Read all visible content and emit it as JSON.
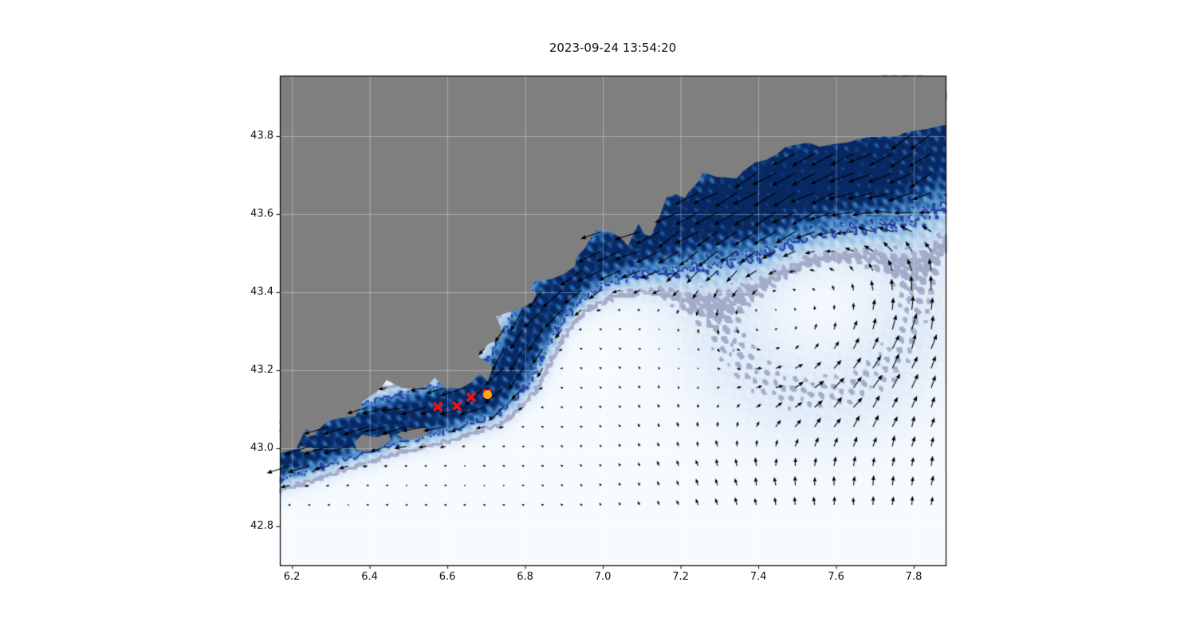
{
  "title": "2023-09-24 13:54:20",
  "chart_data": {
    "type": "quiver-map",
    "title": "2023-09-24 13:54:20",
    "extent": {
      "lon": [
        6.169,
        7.882
      ],
      "lat": [
        42.7,
        43.955
      ]
    },
    "x_axis": {
      "ticks": [
        6.2,
        6.4,
        6.6,
        6.8,
        7.0,
        7.2,
        7.4,
        7.6,
        7.8
      ],
      "tick_labels": [
        "6.2",
        "6.4",
        "6.6",
        "6.8",
        "7.0",
        "7.2",
        "7.4",
        "7.6",
        "7.8"
      ]
    },
    "y_axis": {
      "ticks": [
        43.8,
        43.6,
        43.4,
        43.2,
        43.0,
        42.8
      ],
      "tick_labels": [
        "43.8",
        "43.6",
        "43.4",
        "43.2",
        "43.0",
        "42.8"
      ]
    },
    "grid": {
      "show": true,
      "color": "rgba(255,255,255,0.35)"
    },
    "colors": {
      "figure_bg": "#ffffff",
      "land": "#7f7f7f",
      "frame": "#000000",
      "arrow": "#000000",
      "sea_colormap": [
        [
          247,
          251,
          255
        ],
        [
          228,
          238,
          249
        ],
        [
          204,
          222,
          242
        ],
        [
          158,
          198,
          230
        ],
        [
          100,
          160,
          208
        ],
        [
          49,
          110,
          177
        ],
        [
          15,
          59,
          126
        ],
        [
          8,
          40,
          97
        ]
      ]
    },
    "contours": [
      {
        "name": "inner-isoline",
        "threshold": 0.33,
        "eps": 0.016,
        "color": "#2a46a8",
        "size": 2.5
      },
      {
        "name": "outer-isoline",
        "threshold": 0.14,
        "eps": 0.02,
        "color": "#a3abc9",
        "size": 3.2
      }
    ],
    "markers": {
      "red_x": {
        "color": "#f31111",
        "size": 14,
        "stroke": 3.4,
        "points": [
          [
            6.576,
            43.106
          ],
          [
            6.624,
            43.108
          ],
          [
            6.662,
            43.131
          ],
          [
            6.703,
            43.141
          ]
        ]
      },
      "orange_circle": {
        "color": "#ffa51e",
        "radius": 5.5,
        "point": [
          6.703,
          43.137
        ]
      }
    },
    "quiver": {
      "lon_start": 6.195,
      "lat_start": 42.855,
      "lat_end": 43.905,
      "step": 0.05,
      "scale": 58,
      "max_len": 33,
      "speed_max": 0.6
    },
    "flow": {
      "jet_peak": 0.58,
      "jet_offset": 0.02,
      "jet_width_west": 0.055,
      "jet_width_east": 0.15,
      "jet_width_ramp": {
        "lon0": 6.95,
        "span": 0.45
      },
      "jet_turn": {
        "lon0": 7.15,
        "span": 0.4,
        "angle": 0.45
      },
      "jet_path": [
        [
          6.05,
          42.95
        ],
        [
          6.2,
          42.99
        ],
        [
          6.32,
          43.03
        ],
        [
          6.45,
          43.07
        ],
        [
          6.58,
          43.1
        ],
        [
          6.7,
          43.14
        ],
        [
          6.76,
          43.2
        ],
        [
          6.8,
          43.28
        ],
        [
          6.84,
          43.35
        ],
        [
          6.9,
          43.42
        ],
        [
          6.97,
          43.48
        ],
        [
          7.05,
          43.52
        ],
        [
          7.13,
          43.55
        ],
        [
          7.2,
          43.59
        ],
        [
          7.28,
          43.62
        ],
        [
          7.38,
          43.65
        ],
        [
          7.5,
          43.69
        ],
        [
          7.62,
          43.72
        ],
        [
          7.75,
          43.74
        ],
        [
          7.95,
          43.79
        ]
      ],
      "gyre": {
        "center": [
          7.55,
          43.4
        ],
        "ring_radius": 0.26,
        "ring_width": 0.15,
        "peak": 0.22,
        "color_weight": 0.5
      },
      "inflow": {
        "peak": 0.2,
        "lon_ramp": 7.15,
        "lon_span": 0.12,
        "lat_center": 42.95,
        "lat_width": 0.5,
        "east_tilt": {
          "lon0": 7.45,
          "span": 0.4,
          "max": 1.0,
          "min": -0.3,
          "factor": 0.35
        }
      },
      "drift_u": -0.035,
      "noise_amp_color": 0.16,
      "noise_amp_speed": 0.1,
      "noise_amp_angle": 0.18
    },
    "coastline": [
      [
        6.169,
        42.986
      ],
      [
        6.212,
        43.0
      ],
      [
        6.235,
        43.049
      ],
      [
        6.261,
        43.041
      ],
      [
        6.29,
        43.069
      ],
      [
        6.329,
        43.079
      ],
      [
        6.364,
        43.082
      ],
      [
        6.382,
        43.12
      ],
      [
        6.407,
        43.137
      ],
      [
        6.427,
        43.153
      ],
      [
        6.444,
        43.175
      ],
      [
        6.481,
        43.155
      ],
      [
        6.518,
        43.151
      ],
      [
        6.551,
        43.161
      ],
      [
        6.567,
        43.181
      ],
      [
        6.592,
        43.157
      ],
      [
        6.633,
        43.153
      ],
      [
        6.661,
        43.169
      ],
      [
        6.682,
        43.192
      ],
      [
        6.704,
        43.171
      ],
      [
        6.717,
        43.21
      ],
      [
        6.68,
        43.235
      ],
      [
        6.704,
        43.267
      ],
      [
        6.741,
        43.282
      ],
      [
        6.737,
        43.312
      ],
      [
        6.725,
        43.337
      ],
      [
        6.758,
        43.349
      ],
      [
        6.793,
        43.361
      ],
      [
        6.819,
        43.375
      ],
      [
        6.83,
        43.396
      ],
      [
        6.813,
        43.41
      ],
      [
        6.825,
        43.429
      ],
      [
        6.866,
        43.433
      ],
      [
        6.901,
        43.447
      ],
      [
        6.928,
        43.467
      ],
      [
        6.934,
        43.492
      ],
      [
        6.955,
        43.514
      ],
      [
        6.973,
        43.547
      ],
      [
        6.983,
        43.559
      ],
      [
        7.016,
        43.555
      ],
      [
        7.045,
        43.541
      ],
      [
        7.065,
        43.518
      ],
      [
        7.078,
        43.549
      ],
      [
        7.092,
        43.575
      ],
      [
        7.106,
        43.549
      ],
      [
        7.123,
        43.543
      ],
      [
        7.143,
        43.586
      ],
      [
        7.164,
        43.643
      ],
      [
        7.188,
        43.651
      ],
      [
        7.211,
        43.641
      ],
      [
        7.221,
        43.657
      ],
      [
        7.25,
        43.688
      ],
      [
        7.256,
        43.708
      ],
      [
        7.291,
        43.696
      ],
      [
        7.344,
        43.692
      ],
      [
        7.363,
        43.712
      ],
      [
        7.393,
        43.733
      ],
      [
        7.42,
        43.739
      ],
      [
        7.447,
        43.753
      ],
      [
        7.471,
        43.773
      ],
      [
        7.502,
        43.779
      ],
      [
        7.529,
        43.783
      ],
      [
        7.558,
        43.773
      ],
      [
        7.59,
        43.779
      ],
      [
        7.625,
        43.783
      ],
      [
        7.652,
        43.79
      ],
      [
        7.687,
        43.798
      ],
      [
        7.728,
        43.8
      ],
      [
        7.759,
        43.8
      ],
      [
        7.775,
        43.808
      ],
      [
        7.804,
        43.814
      ],
      [
        7.831,
        43.818
      ],
      [
        7.857,
        43.824
      ],
      [
        7.882,
        43.829
      ]
    ],
    "islands": [
      [
        [
          6.36,
          43.014
        ],
        [
          6.38,
          43.035
        ],
        [
          6.417,
          43.028
        ],
        [
          6.45,
          43.037
        ],
        [
          6.454,
          43.02
        ],
        [
          6.43,
          43.006
        ],
        [
          6.397,
          42.994
        ],
        [
          6.368,
          42.994
        ]
      ],
      [
        [
          6.468,
          43.035
        ],
        [
          6.501,
          43.051
        ],
        [
          6.54,
          43.053
        ],
        [
          6.557,
          43.043
        ],
        [
          6.532,
          43.027
        ],
        [
          6.491,
          43.022
        ]
      ],
      [
        [
          6.231,
          43.043
        ],
        [
          6.255,
          43.049
        ],
        [
          6.263,
          43.035
        ],
        [
          6.239,
          43.029
        ]
      ],
      [
        [
          6.22,
          43.006
        ],
        [
          6.257,
          43.0
        ],
        [
          6.25,
          42.988
        ],
        [
          6.222,
          42.992
        ]
      ]
    ]
  }
}
